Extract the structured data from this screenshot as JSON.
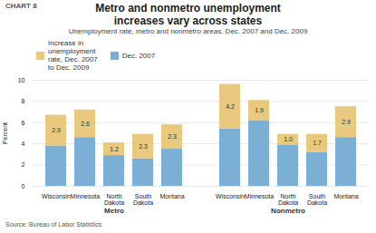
{
  "chart_data": {
    "type": "bar",
    "title": "Metro and nonmetro unemployment\nincreases vary across states",
    "subtitle": "Unemployment rate, metro and nonmetro areas, Dec. 2007 and Dec. 2009",
    "chart_label": "CHART 8",
    "source": "Source: Bureau of Labor Statistics",
    "ylabel": "Percent",
    "categories": [
      "Wisconsin",
      "Minnesota",
      "North\nDakota",
      "South\nDakota",
      "Montana",
      "Wisconsin",
      "Minnesota",
      "North\nDakota",
      "South\nDakota",
      "Montana"
    ],
    "category_groups": [
      "Metro",
      "Metro",
      "Metro",
      "Metro",
      "Metro",
      "Nonmetro",
      "Nonmetro",
      "Nonmetro",
      "Nonmetro",
      "Nonmetro"
    ],
    "series": [
      {
        "name": "Dec. 2007",
        "color": "#7bafd4",
        "values": [
          3.8,
          4.6,
          2.9,
          2.6,
          3.5,
          5.4,
          6.2,
          3.9,
          3.2,
          4.6
        ]
      },
      {
        "name": "Increase in\nunemployment\nrate, Dec. 2007\nto Dec. 2009",
        "color": "#e8c97e",
        "values": [
          2.9,
          2.6,
          1.2,
          2.3,
          2.3,
          4.2,
          1.9,
          1.0,
          1.7,
          2.9
        ],
        "value_labels": [
          "2.9",
          "2.6",
          "1.2",
          "2.3",
          "2.3",
          "4.2",
          "1.9",
          "1.0",
          "1.7",
          "2.9"
        ],
        "data_labels": true
      }
    ],
    "stacked": true,
    "ylim": [
      0,
      10
    ],
    "yticks": [
      0,
      2,
      4,
      6,
      8,
      10
    ],
    "grid": true,
    "legend": "upper left"
  }
}
